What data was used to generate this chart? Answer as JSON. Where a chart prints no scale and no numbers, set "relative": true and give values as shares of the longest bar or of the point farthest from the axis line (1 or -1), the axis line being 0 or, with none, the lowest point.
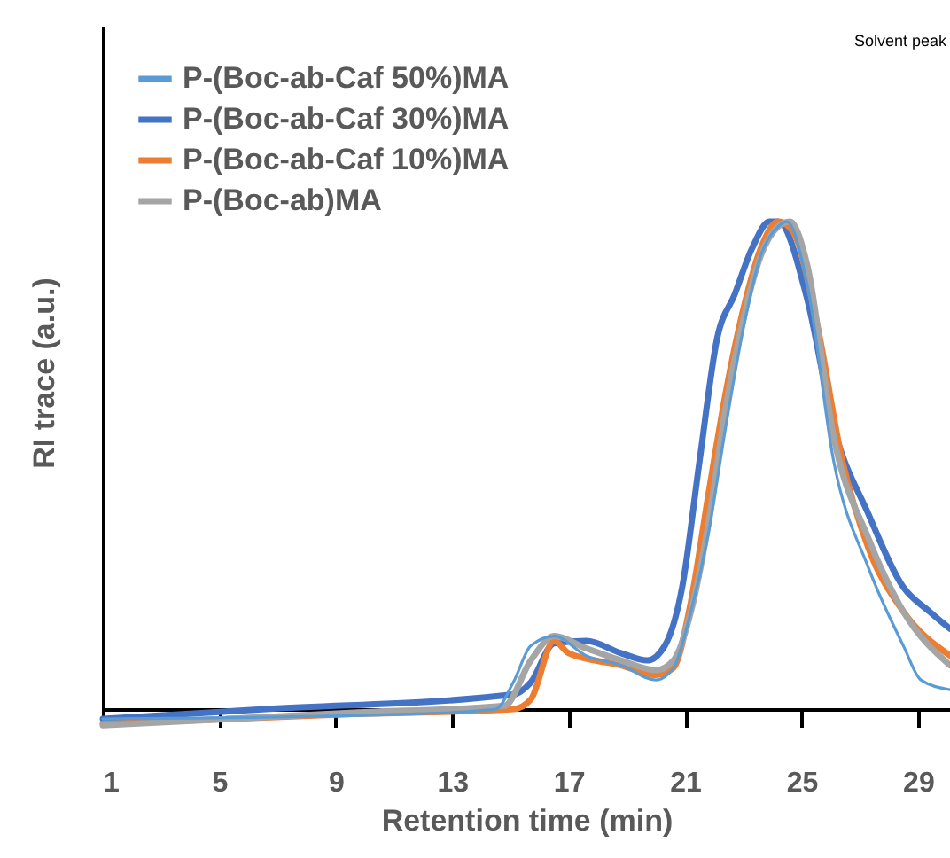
{
  "chart_data": {
    "type": "line",
    "xlabel": "Retention time (min)",
    "ylabel": "RI trace (a.u.)",
    "relative": true,
    "xlim": [
      1,
      30.1
    ],
    "xticks": [
      1,
      5,
      9,
      13,
      17,
      21,
      25,
      29
    ],
    "grid": false,
    "legend": "top left",
    "annotations": [
      "Solvent peak"
    ],
    "series": [
      {
        "name": "P-(Boc-ab-Caf 50%)MA",
        "color": "#5b9bd5",
        "x": [
          1,
          11.5,
          14.5,
          15.1,
          15.7,
          16.5,
          17.6,
          18.8,
          20.0,
          20.6,
          21.2,
          21.8,
          22.4,
          23.0,
          23.6,
          24.2,
          24.5,
          25.2,
          26.1,
          27.3,
          28.5,
          29.1,
          30.1
        ],
        "values": [
          -0.02,
          -0.01,
          0,
          0.055,
          0.13,
          0.15,
          0.11,
          0.09,
          0.06,
          0.085,
          0.2,
          0.36,
          0.58,
          0.78,
          0.93,
          0.99,
          1,
          0.87,
          0.51,
          0.29,
          0.13,
          0.06,
          0.04
        ]
      },
      {
        "name": "P-(Boc-ab-Caf 30%)MA",
        "color": "#4472c4",
        "x": [
          1,
          6.6,
          15.1,
          15.7,
          16.5,
          17.6,
          18.8,
          19.7,
          20.3,
          20.9,
          21.5,
          22.1,
          22.7,
          23.3,
          23.9,
          24.2,
          25.2,
          26.1,
          27.3,
          28.5,
          29.4,
          30.1
        ],
        "values": [
          -0.02,
          0,
          0.03,
          0.055,
          0.135,
          0.14,
          0.115,
          0.1,
          0.13,
          0.25,
          0.51,
          0.76,
          0.85,
          0.945,
          1,
          1,
          0.84,
          0.58,
          0.4,
          0.25,
          0.2,
          0.165
        ]
      },
      {
        "name": "P-(Boc-ab-Caf 10%)MA",
        "color": "#ed7d31",
        "x": [
          1,
          9.6,
          15.1,
          15.7,
          16.5,
          17.0,
          18.8,
          20.0,
          20.6,
          21.2,
          21.8,
          22.4,
          23.0,
          23.6,
          24.2,
          24.7,
          25.5,
          26.4,
          27.3,
          28.5,
          30.1
        ],
        "values": [
          -0.03,
          -0.01,
          0,
          0.02,
          0.14,
          0.115,
          0.09,
          0.07,
          0.085,
          0.22,
          0.44,
          0.65,
          0.82,
          0.945,
          1,
          0.98,
          0.8,
          0.51,
          0.33,
          0.2,
          0.11
        ]
      },
      {
        "name": "P-(Boc-ab)MA",
        "color": "#a5a5a5",
        "x": [
          1,
          9.6,
          14.8,
          15.7,
          16.5,
          17.6,
          18.8,
          20.0,
          20.6,
          21.2,
          21.8,
          22.4,
          23.0,
          23.6,
          24.2,
          24.6,
          25.2,
          26.1,
          27.3,
          28.5,
          30.1
        ],
        "values": [
          -0.033,
          -0.007,
          0.007,
          0.1,
          0.15,
          0.125,
          0.1,
          0.08,
          0.1,
          0.2,
          0.38,
          0.62,
          0.8,
          0.93,
          0.99,
          1,
          0.91,
          0.56,
          0.35,
          0.2,
          0.09
        ]
      }
    ]
  }
}
